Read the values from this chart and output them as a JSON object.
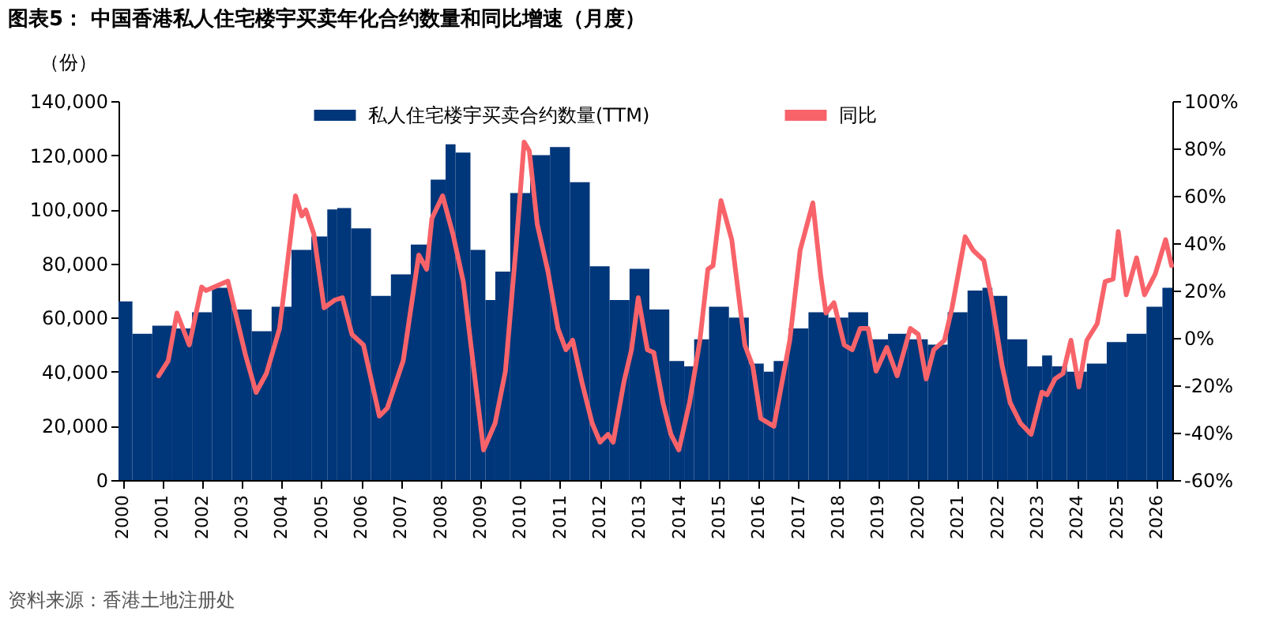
{
  "chart_data": {
    "type": "bar",
    "title": "图表5：  中国香港私人住宅楼宇买卖年化合约数量和同比增速（月度）",
    "ylabel": "（份）",
    "annotations": [
      "资料来源：香港土地注册处"
    ],
    "xlim": [
      1999.9,
      2026.4
    ],
    "xticks": [
      2000,
      2001,
      2002,
      2003,
      2004,
      2005,
      2006,
      2007,
      2008,
      2009,
      2010,
      2011,
      2012,
      2013,
      2014,
      2015,
      2016,
      2017,
      2018,
      2019,
      2020,
      2021,
      2022,
      2023,
      2024,
      2025,
      2026
    ],
    "ylim": [
      0,
      140000
    ],
    "yticks": [
      0,
      {
        "value": 20000,
        "label": "20,000"
      },
      {
        "value": 40000,
        "label": "40,000"
      },
      {
        "value": 60000,
        "label": "60,000"
      },
      {
        "value": 80000,
        "label": "80,000"
      },
      {
        "value": 100000,
        "label": "100,000"
      },
      {
        "value": 120000,
        "label": "120,000"
      },
      {
        "value": 140000,
        "label": "140,000"
      }
    ],
    "y2lim": [
      -60,
      100
    ],
    "y2ticks": [
      {
        "value": -60,
        "label": "-60%"
      },
      {
        "value": -40,
        "label": "-40%"
      },
      {
        "value": -20,
        "label": "-20%"
      },
      {
        "value": 0,
        "label": "0%"
      },
      {
        "value": 20,
        "label": "20%"
      },
      {
        "value": 40,
        "label": "40%"
      },
      {
        "value": 60,
        "label": "60%"
      },
      {
        "value": 80,
        "label": "80%"
      },
      {
        "value": 100,
        "label": "100%"
      }
    ],
    "legend": "top",
    "grid": false,
    "series": [
      {
        "name": "私人住宅楼宇买卖合约数量(TTM)",
        "color": "#00367a",
        "x": [
          2000.0,
          2000.5,
          2001.0,
          2001.5,
          2002.0,
          2002.5,
          2003.0,
          2003.5,
          2004.0,
          2004.5,
          2005.0,
          2005.3,
          2005.5,
          2006.0,
          2006.5,
          2007.0,
          2007.5,
          2008.0,
          2008.25,
          2008.5,
          2009.0,
          2009.25,
          2009.5,
          2010.0,
          2010.5,
          2011.0,
          2011.5,
          2012.0,
          2012.5,
          2013.0,
          2013.5,
          2014.0,
          2014.25,
          2014.5,
          2015.0,
          2015.5,
          2016.0,
          2016.25,
          2016.5,
          2017.0,
          2017.5,
          2018.0,
          2018.5,
          2019.0,
          2019.5,
          2020.0,
          2020.5,
          2021.0,
          2021.5,
          2021.75,
          2022.0,
          2022.5,
          2023.0,
          2023.25,
          2023.5,
          2024.0,
          2024.5,
          2025.0,
          2025.5,
          2026.0,
          2026.3
        ],
        "values": [
          66000,
          54000,
          57000,
          56000,
          62000,
          71000,
          63000,
          55000,
          64000,
          85000,
          90000,
          100000,
          100500,
          93000,
          68000,
          76000,
          87000,
          111000,
          124000,
          121000,
          85000,
          66500,
          77000,
          106000,
          120000,
          123000,
          110000,
          79000,
          66500,
          78000,
          63000,
          44000,
          42000,
          52000,
          64000,
          60000,
          43000,
          40000,
          44000,
          56000,
          62000,
          60000,
          62000,
          52000,
          54000,
          52000,
          50000,
          62000,
          70000,
          71000,
          68000,
          52000,
          42000,
          46000,
          42000,
          40000,
          43000,
          51000,
          54000,
          64000,
          71000
        ]
      },
      {
        "name": "同比",
        "type": "line",
        "axis": "y2",
        "color": "#f8636a",
        "x": [
          2000.91,
          2001.15,
          2001.37,
          2001.68,
          2001.99,
          2002.1,
          2002.65,
          2003.09,
          2003.36,
          2003.62,
          2003.95,
          2004.35,
          2004.51,
          2004.61,
          2004.81,
          2005.07,
          2005.34,
          2005.53,
          2005.77,
          2006.06,
          2006.46,
          2006.66,
          2007.06,
          2007.45,
          2007.65,
          2007.78,
          2008.05,
          2008.31,
          2008.57,
          2009.08,
          2009.37,
          2009.63,
          2009.9,
          2010.1,
          2010.23,
          2010.43,
          2010.7,
          2010.95,
          2011.15,
          2011.32,
          2011.55,
          2011.81,
          2012.01,
          2012.21,
          2012.34,
          2012.61,
          2012.8,
          2012.97,
          2013.2,
          2013.36,
          2013.59,
          2013.79,
          2013.99,
          2014.26,
          2014.52,
          2014.72,
          2014.85,
          2015.05,
          2015.32,
          2015.65,
          2015.85,
          2016.05,
          2016.38,
          2016.78,
          2017.04,
          2017.36,
          2017.56,
          2017.69,
          2017.89,
          2018.15,
          2018.35,
          2018.55,
          2018.75,
          2018.95,
          2019.22,
          2019.48,
          2019.81,
          2020.01,
          2020.21,
          2020.4,
          2020.67,
          2020.86,
          2021.19,
          2021.39,
          2021.66,
          2021.85,
          2022.12,
          2022.32,
          2022.58,
          2022.85,
          2023.12,
          2023.25,
          2023.45,
          2023.65,
          2023.85,
          2024.05,
          2024.25,
          2024.51,
          2024.71,
          2024.91,
          2025.04,
          2025.24,
          2025.5,
          2025.7,
          2025.97,
          2026.23,
          2026.38
        ],
        "values": [
          -16,
          -9.6,
          10.5,
          -3,
          21.5,
          20,
          24,
          -7,
          -23,
          -15,
          4,
          60,
          51.5,
          54,
          44,
          12.7,
          16,
          17,
          1.5,
          -3,
          -33,
          -29.6,
          -9.6,
          35,
          29,
          50.4,
          60,
          43.8,
          23.8,
          -47.3,
          -36,
          -14,
          39,
          82.7,
          79,
          48,
          28,
          4,
          -5,
          -1,
          -18.5,
          -36,
          -44,
          -40.7,
          -44,
          -18.5,
          -5,
          17,
          -5,
          -6.2,
          -27.3,
          -40.7,
          -47.3,
          -27.3,
          -1,
          29,
          30.5,
          58,
          41.5,
          -3,
          -12,
          -34,
          -37.3,
          -1,
          37,
          57,
          26,
          10.5,
          14.9,
          -3,
          -5,
          4,
          4,
          -14,
          -4,
          -16,
          4,
          1.5,
          -17.3,
          -5,
          -1,
          12.7,
          42.7,
          37,
          32.7,
          17,
          -11.8,
          -27.3,
          -36,
          -40.7,
          -22.9,
          -24,
          -17.3,
          -15,
          -1,
          -20.7,
          -1,
          6,
          23.8,
          24.9,
          44.9,
          18.2,
          33.8,
          18.2,
          27,
          41.5,
          30.5
        ]
      }
    ]
  }
}
